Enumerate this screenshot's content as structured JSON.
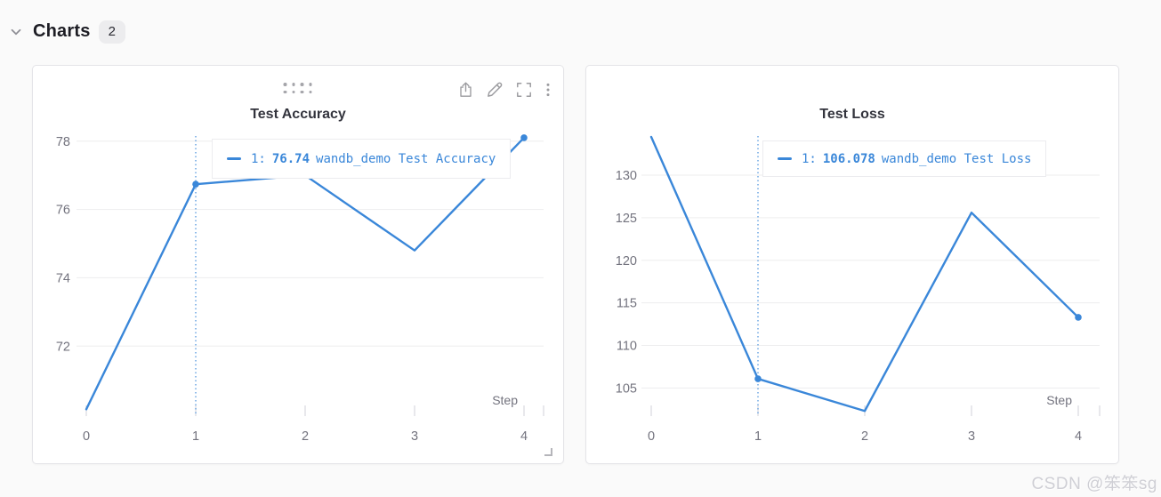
{
  "header": {
    "title": "Charts",
    "count": "2"
  },
  "watermark": "CSDN @笨笨sg",
  "colors": {
    "accent_blue": "#3a87d9",
    "grid": "#ededee",
    "tick": "#d9d9de",
    "axis_text": "#73737e",
    "icon_gray": "#9b9b9f"
  },
  "chart_data": [
    {
      "type": "line",
      "title": "Test Accuracy",
      "xlabel": "Step",
      "x": [
        0,
        1,
        2,
        3,
        4
      ],
      "series": [
        {
          "name": "wandb_demo Test Accuracy",
          "values": [
            70.15,
            76.74,
            77.0,
            74.8,
            78.1
          ]
        }
      ],
      "x_ticks": [
        0,
        1,
        2,
        3,
        4
      ],
      "y_ticks": [
        72,
        74,
        76,
        78
      ],
      "xlim": [
        0,
        4
      ],
      "ylim": [
        69.95,
        78.15
      ],
      "grid": true,
      "legend_position": "none",
      "crosshair_x": 1,
      "marker_indices": [
        1,
        4
      ],
      "tooltip": {
        "run": "1:",
        "value": "76.74",
        "label": "wandb_demo Test Accuracy"
      }
    },
    {
      "type": "line",
      "title": "Test Loss",
      "xlabel": "Step",
      "x": [
        0,
        1,
        2,
        3,
        4
      ],
      "series": [
        {
          "name": "wandb_demo Test Loss",
          "values": [
            134.5,
            106.078,
            102.3,
            125.6,
            113.3
          ]
        }
      ],
      "x_ticks": [
        0,
        1,
        2,
        3,
        4
      ],
      "y_ticks": [
        105,
        110,
        115,
        120,
        125,
        130
      ],
      "xlim": [
        0,
        4
      ],
      "ylim": [
        101.7,
        134.6
      ],
      "grid": true,
      "legend_position": "none",
      "crosshair_x": 1,
      "marker_indices": [
        1,
        4
      ],
      "tooltip": {
        "run": "1:",
        "value": "106.078",
        "label": "wandb_demo Test Loss"
      }
    }
  ]
}
